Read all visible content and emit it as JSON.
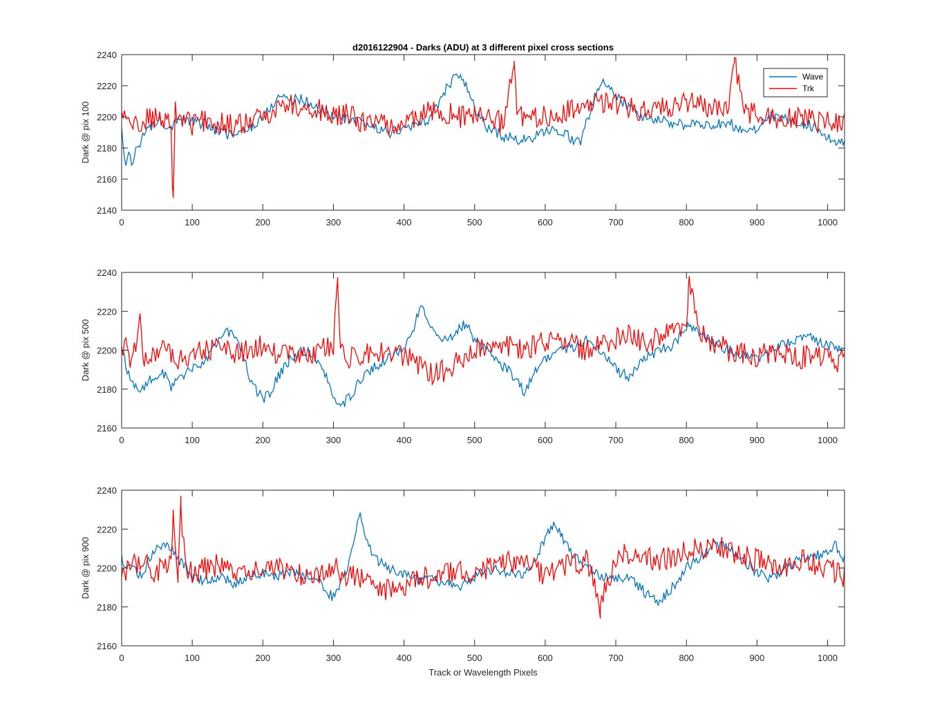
{
  "figure": {
    "title": "d2016122904 - Darks (ADU) at 3 different pixel cross sections",
    "xlabel": "Track or Wavelength Pixels",
    "colors": {
      "wave": "#0072BD",
      "trk": "#FF0000",
      "axes": "#262626"
    },
    "legend": {
      "position": "top-right of first subplot",
      "entries": [
        "Wave",
        "Trk"
      ]
    }
  },
  "chart_data": [
    {
      "type": "line",
      "ylabel": "Dark @ pix 100",
      "xlim": [
        0,
        1024
      ],
      "ylim": [
        2140,
        2240
      ],
      "xticks": [
        0,
        100,
        200,
        300,
        400,
        500,
        600,
        700,
        800,
        900,
        1000
      ],
      "yticks": [
        2140,
        2160,
        2180,
        2200,
        2220,
        2240
      ],
      "legend": true,
      "series": [
        {
          "name": "Wave",
          "color": "#0072BD",
          "x": [
            0,
            5,
            10,
            15,
            20,
            25,
            30,
            40,
            50,
            60,
            70,
            80,
            90,
            100,
            120,
            140,
            160,
            180,
            200,
            210,
            220,
            230,
            240,
            250,
            260,
            280,
            300,
            320,
            340,
            360,
            380,
            400,
            420,
            440,
            450,
            460,
            470,
            480,
            490,
            500,
            520,
            540,
            560,
            580,
            600,
            620,
            640,
            650,
            660,
            670,
            680,
            690,
            700,
            720,
            740,
            760,
            780,
            800,
            820,
            840,
            860,
            880,
            900,
            920,
            940,
            960,
            980,
            1000,
            1010,
            1024
          ],
          "y": [
            2190,
            2170,
            2175,
            2168,
            2180,
            2183,
            2188,
            2192,
            2198,
            2196,
            2194,
            2200,
            2198,
            2197,
            2195,
            2190,
            2188,
            2192,
            2200,
            2205,
            2212,
            2214,
            2210,
            2212,
            2210,
            2205,
            2200,
            2198,
            2196,
            2193,
            2190,
            2192,
            2195,
            2200,
            2210,
            2218,
            2225,
            2225,
            2218,
            2205,
            2192,
            2188,
            2185,
            2186,
            2190,
            2192,
            2185,
            2185,
            2198,
            2212,
            2222,
            2220,
            2213,
            2206,
            2200,
            2198,
            2196,
            2194,
            2196,
            2195,
            2196,
            2192,
            2193,
            2200,
            2198,
            2196,
            2194,
            2188,
            2183,
            2185
          ]
        },
        {
          "name": "Trk",
          "color": "#FF0000",
          "x": [
            0,
            10,
            20,
            30,
            40,
            50,
            60,
            70,
            73,
            76,
            80,
            90,
            100,
            120,
            140,
            160,
            180,
            200,
            220,
            240,
            260,
            280,
            300,
            320,
            340,
            360,
            380,
            400,
            420,
            440,
            460,
            480,
            500,
            520,
            540,
            556,
            560,
            580,
            600,
            620,
            640,
            660,
            680,
            700,
            720,
            740,
            760,
            780,
            800,
            820,
            840,
            860,
            868,
            880,
            900,
            920,
            940,
            960,
            980,
            1000,
            1024
          ],
          "y": [
            2200,
            2198,
            2195,
            2196,
            2200,
            2198,
            2196,
            2194,
            2148,
            2205,
            2198,
            2200,
            2195,
            2198,
            2196,
            2194,
            2196,
            2200,
            2206,
            2208,
            2206,
            2204,
            2200,
            2202,
            2196,
            2198,
            2194,
            2196,
            2199,
            2204,
            2202,
            2200,
            2202,
            2198,
            2196,
            2236,
            2200,
            2198,
            2200,
            2203,
            2204,
            2206,
            2210,
            2208,
            2205,
            2204,
            2206,
            2208,
            2210,
            2208,
            2206,
            2206,
            2238,
            2204,
            2202,
            2200,
            2198,
            2200,
            2198,
            2196,
            2198
          ]
        }
      ]
    },
    {
      "type": "line",
      "ylabel": "Dark @ pix 500",
      "xlim": [
        0,
        1024
      ],
      "ylim": [
        2160,
        2240
      ],
      "xticks": [
        0,
        100,
        200,
        300,
        400,
        500,
        600,
        700,
        800,
        900,
        1000
      ],
      "yticks": [
        2160,
        2180,
        2200,
        2220,
        2240
      ],
      "legend": false,
      "series": [
        {
          "name": "Wave",
          "color": "#0072BD",
          "x": [
            0,
            10,
            20,
            30,
            40,
            50,
            60,
            70,
            80,
            100,
            120,
            140,
            150,
            160,
            170,
            180,
            190,
            200,
            210,
            220,
            240,
            260,
            280,
            300,
            310,
            320,
            340,
            360,
            380,
            400,
            410,
            420,
            425,
            430,
            440,
            460,
            480,
            490,
            500,
            520,
            540,
            560,
            570,
            580,
            600,
            620,
            640,
            660,
            680,
            700,
            720,
            740,
            760,
            780,
            800,
            820,
            840,
            860,
            880,
            900,
            920,
            940,
            960,
            980,
            1000,
            1024
          ],
          "y": [
            2200,
            2188,
            2182,
            2180,
            2186,
            2185,
            2188,
            2180,
            2186,
            2190,
            2196,
            2205,
            2210,
            2208,
            2200,
            2188,
            2180,
            2175,
            2178,
            2185,
            2196,
            2200,
            2195,
            2178,
            2170,
            2175,
            2185,
            2192,
            2196,
            2200,
            2208,
            2218,
            2222,
            2220,
            2210,
            2205,
            2212,
            2214,
            2205,
            2200,
            2192,
            2185,
            2178,
            2185,
            2196,
            2200,
            2202,
            2205,
            2200,
            2190,
            2186,
            2196,
            2200,
            2202,
            2212,
            2208,
            2204,
            2200,
            2198,
            2196,
            2200,
            2204,
            2206,
            2206,
            2202,
            2200
          ]
        },
        {
          "name": "Trk",
          "color": "#FF0000",
          "x": [
            0,
            5,
            10,
            20,
            26,
            30,
            40,
            60,
            80,
            100,
            120,
            140,
            160,
            180,
            200,
            220,
            240,
            260,
            280,
            300,
            306,
            310,
            320,
            340,
            360,
            380,
            400,
            420,
            440,
            460,
            480,
            500,
            520,
            540,
            560,
            580,
            600,
            620,
            640,
            660,
            680,
            700,
            720,
            740,
            760,
            780,
            800,
            803,
            820,
            840,
            860,
            880,
            900,
            920,
            940,
            960,
            980,
            1000,
            1010,
            1024
          ],
          "y": [
            2198,
            2210,
            2196,
            2200,
            2220,
            2198,
            2196,
            2200,
            2196,
            2198,
            2200,
            2202,
            2198,
            2200,
            2202,
            2198,
            2200,
            2196,
            2200,
            2202,
            2236,
            2198,
            2196,
            2198,
            2200,
            2196,
            2198,
            2192,
            2188,
            2190,
            2196,
            2200,
            2202,
            2204,
            2200,
            2202,
            2204,
            2206,
            2202,
            2200,
            2204,
            2206,
            2208,
            2204,
            2206,
            2210,
            2212,
            2234,
            2208,
            2204,
            2200,
            2198,
            2196,
            2200,
            2198,
            2196,
            2198,
            2196,
            2192,
            2196
          ]
        }
      ]
    },
    {
      "type": "line",
      "ylabel": "Dark @ pix 900",
      "xlim": [
        0,
        1024
      ],
      "ylim": [
        2160,
        2240
      ],
      "xticks": [
        0,
        100,
        200,
        300,
        400,
        500,
        600,
        700,
        800,
        900,
        1000
      ],
      "yticks": [
        2160,
        2180,
        2200,
        2220,
        2240
      ],
      "legend": false,
      "series": [
        {
          "name": "Wave",
          "color": "#0072BD",
          "x": [
            0,
            10,
            20,
            30,
            40,
            50,
            60,
            70,
            80,
            100,
            120,
            140,
            160,
            180,
            200,
            220,
            240,
            260,
            280,
            290,
            300,
            310,
            320,
            330,
            338,
            345,
            350,
            360,
            380,
            400,
            420,
            440,
            460,
            480,
            500,
            520,
            540,
            560,
            580,
            600,
            610,
            620,
            640,
            660,
            680,
            700,
            720,
            740,
            760,
            780,
            800,
            820,
            840,
            860,
            880,
            900,
            920,
            940,
            960,
            980,
            1000,
            1010,
            1024
          ],
          "y": [
            2205,
            2200,
            2198,
            2196,
            2205,
            2210,
            2212,
            2210,
            2205,
            2195,
            2194,
            2196,
            2192,
            2195,
            2198,
            2196,
            2198,
            2196,
            2194,
            2188,
            2185,
            2192,
            2200,
            2218,
            2228,
            2218,
            2212,
            2205,
            2200,
            2196,
            2194,
            2195,
            2192,
            2190,
            2196,
            2200,
            2198,
            2196,
            2200,
            2215,
            2222,
            2218,
            2206,
            2200,
            2196,
            2194,
            2196,
            2188,
            2182,
            2190,
            2200,
            2206,
            2212,
            2210,
            2204,
            2198,
            2195,
            2200,
            2204,
            2206,
            2208,
            2212,
            2205
          ]
        },
        {
          "name": "Trk",
          "color": "#FF0000",
          "x": [
            0,
            10,
            20,
            30,
            40,
            50,
            60,
            70,
            73,
            80,
            84,
            90,
            100,
            120,
            140,
            160,
            180,
            200,
            220,
            240,
            260,
            280,
            300,
            320,
            340,
            360,
            380,
            400,
            420,
            440,
            460,
            480,
            500,
            520,
            540,
            560,
            580,
            600,
            620,
            640,
            660,
            678,
            700,
            720,
            740,
            760,
            780,
            800,
            820,
            840,
            860,
            880,
            900,
            920,
            940,
            960,
            980,
            1000,
            1010,
            1024
          ],
          "y": [
            2200,
            2198,
            2202,
            2204,
            2200,
            2198,
            2202,
            2200,
            2230,
            2198,
            2232,
            2200,
            2198,
            2200,
            2202,
            2198,
            2196,
            2200,
            2202,
            2198,
            2196,
            2198,
            2200,
            2196,
            2194,
            2192,
            2188,
            2190,
            2196,
            2194,
            2198,
            2200,
            2198,
            2200,
            2202,
            2204,
            2200,
            2196,
            2200,
            2202,
            2204,
            2180,
            2206,
            2208,
            2206,
            2204,
            2206,
            2208,
            2210,
            2212,
            2208,
            2206,
            2204,
            2202,
            2200,
            2204,
            2202,
            2200,
            2198,
            2196
          ]
        }
      ]
    }
  ]
}
